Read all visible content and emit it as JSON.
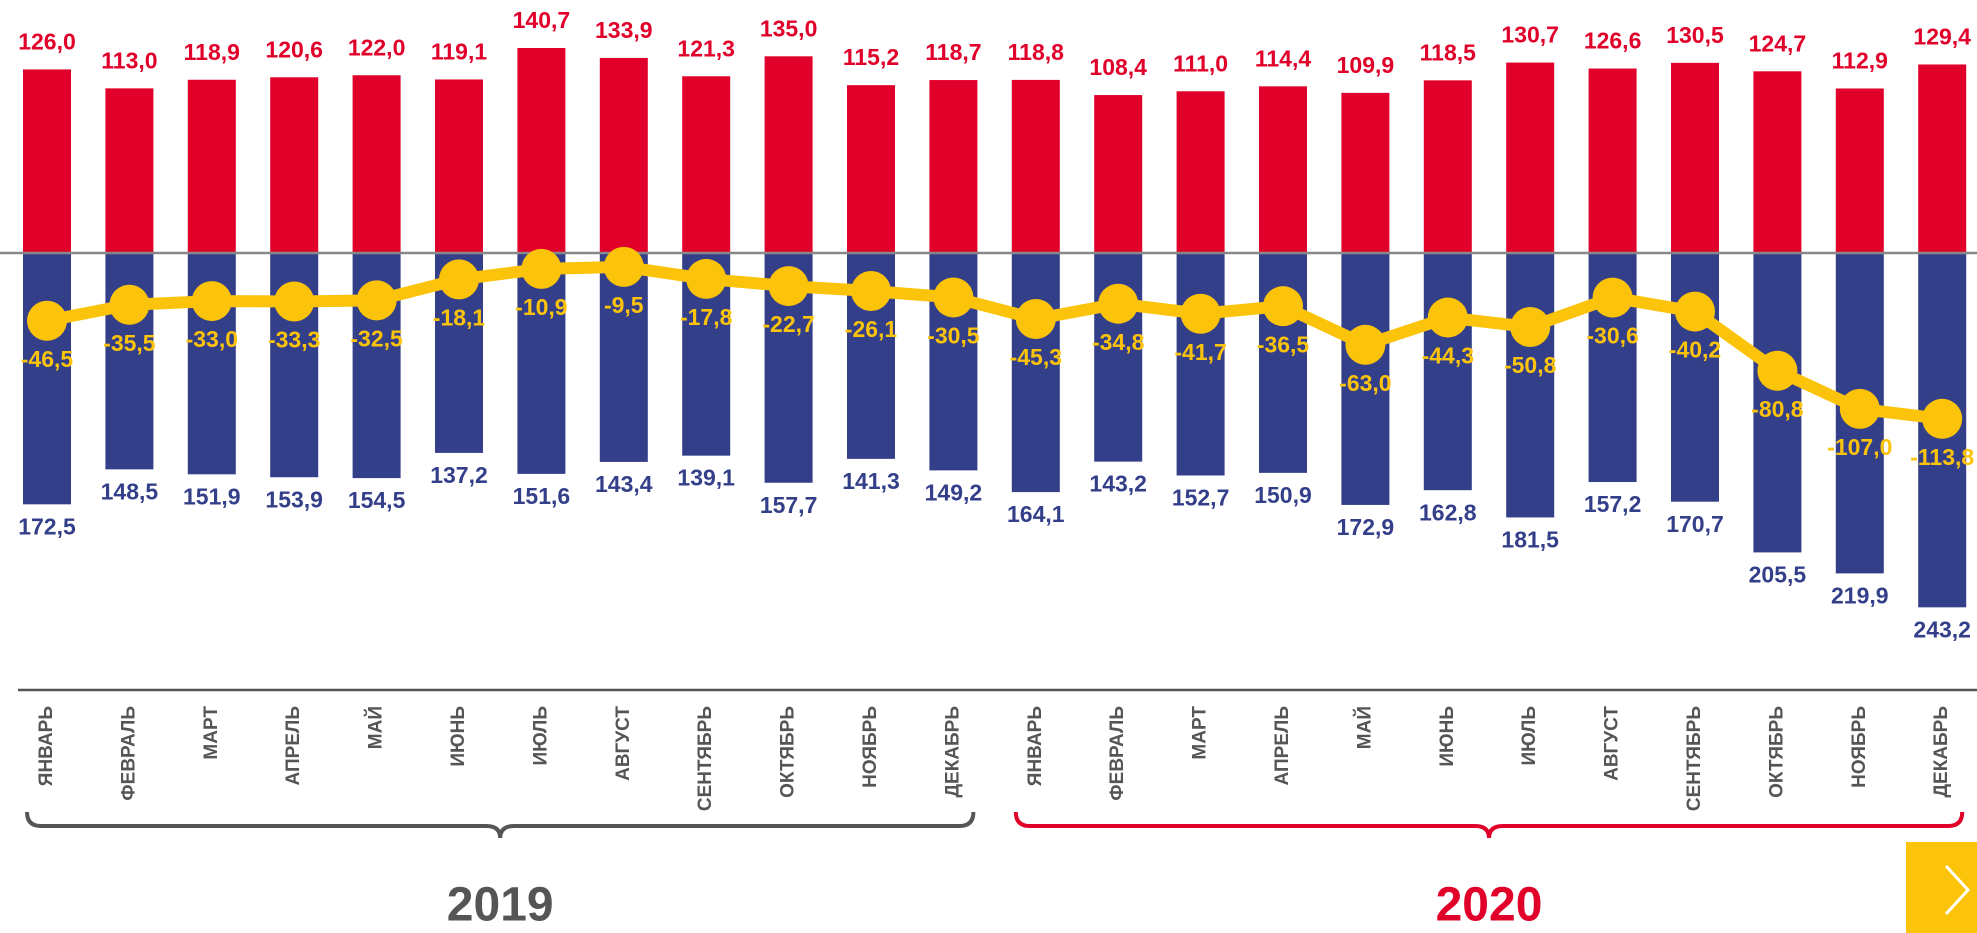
{
  "chart_data": {
    "type": "bar-line",
    "categories": [
      "ЯНВАРЬ",
      "ФЕВРАЛЬ",
      "МАРТ",
      "АПРЕЛЬ",
      "МАЙ",
      "ИЮНЬ",
      "ИЮЛЬ",
      "АВГУСТ",
      "СЕНТЯБРЬ",
      "ОКТЯБРЬ",
      "НОЯБРЬ",
      "ДЕКАБРЬ",
      "ЯНВАРЬ",
      "ФЕВРАЛЬ",
      "МАРТ",
      "АПРЕЛЬ",
      "МАЙ",
      "ИЮНЬ",
      "ИЮЛЬ",
      "АВГУСТ",
      "СЕНТЯБРЬ",
      "ОКТЯБРЬ",
      "НОЯБРЬ",
      "ДЕКАБРЬ"
    ],
    "series": [
      {
        "kind": "bar",
        "direction": "up",
        "color": "#e0002a",
        "values": [
          126.0,
          113.0,
          118.9,
          120.6,
          122.0,
          119.1,
          140.7,
          133.9,
          121.3,
          135.0,
          115.2,
          118.7,
          118.8,
          108.4,
          111.0,
          114.4,
          109.9,
          118.5,
          130.7,
          126.6,
          130.5,
          124.7,
          112.9,
          129.4
        ],
        "value_labels": [
          "126,0",
          "113,0",
          "118,9",
          "120,6",
          "122,0",
          "119,1",
          "140,7",
          "133,9",
          "121,3",
          "135,0",
          "115,2",
          "118,7",
          "118,8",
          "108,4",
          "111,0",
          "114,4",
          "109,9",
          "118,5",
          "130,7",
          "126,6",
          "130,5",
          "124,7",
          "112,9",
          "129,4"
        ]
      },
      {
        "kind": "bar",
        "direction": "down",
        "color": "#343f8a",
        "values": [
          172.5,
          148.5,
          151.9,
          153.9,
          154.5,
          137.2,
          151.6,
          143.4,
          139.1,
          157.7,
          141.3,
          149.2,
          164.1,
          143.2,
          152.7,
          150.9,
          172.9,
          162.8,
          181.5,
          157.2,
          170.7,
          205.5,
          219.9,
          243.2
        ],
        "value_labels": [
          "172,5",
          "148,5",
          "151,9",
          "153,9",
          "154,5",
          "137,2",
          "151,6",
          "143,4",
          "139,1",
          "157,7",
          "141,3",
          "149,2",
          "164,1",
          "143,2",
          "152,7",
          "150,9",
          "172,9",
          "162,8",
          "181,5",
          "157,2",
          "170,7",
          "205,5",
          "219,9",
          "243,2"
        ]
      },
      {
        "kind": "line",
        "color": "#fcc30b",
        "values": [
          -46.5,
          -35.5,
          -33.0,
          -33.3,
          -32.5,
          -18.1,
          -10.9,
          -9.5,
          -17.8,
          -22.7,
          -26.1,
          -30.5,
          -45.3,
          -34.8,
          -41.7,
          -36.5,
          -63.0,
          -44.3,
          -50.8,
          -30.6,
          -40.2,
          -80.8,
          -107.0,
          -113.8
        ],
        "value_labels": [
          "-46,5",
          "-35,5",
          "-33,0",
          "-33,3",
          "-32,5",
          "-18,1",
          "-10,9",
          "-9,5",
          "-17,8",
          "-22,7",
          "-26,1",
          "-30,5",
          "-45,3",
          "-34,8",
          "-41,7",
          "-36,5",
          "-63,0",
          "-44,3",
          "-50,8",
          "-30,6",
          "-40,2",
          "-80,8",
          "-107,0",
          "-113,8"
        ]
      }
    ],
    "groups": [
      {
        "label": "2019",
        "color": "#555555"
      },
      {
        "label": "2020",
        "color": "#e0002a"
      }
    ]
  }
}
